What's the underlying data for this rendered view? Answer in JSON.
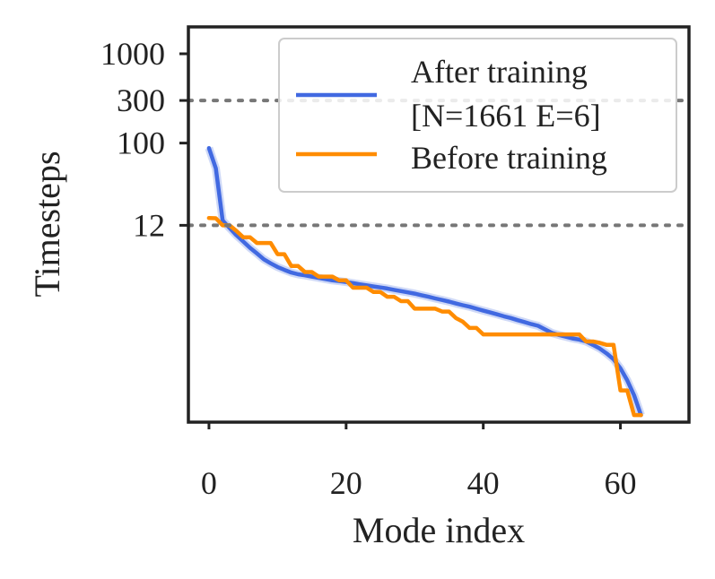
{
  "chart_data": {
    "type": "line",
    "title": "",
    "xlabel": "Mode index",
    "ylabel": "Timesteps",
    "xlim": [
      -3,
      70
    ],
    "ylog": true,
    "ylim": [
      0.075,
      2000
    ],
    "xticks": [
      0,
      20,
      40,
      60
    ],
    "xtick_labels": [
      "0",
      "20",
      "40",
      "60"
    ],
    "yticks": [
      12,
      100,
      300,
      1000
    ],
    "ytick_labels": [
      "12",
      "100",
      "300",
      "1000"
    ],
    "hlines": [
      12,
      300
    ],
    "grid": false,
    "legend_position": "top-right",
    "series": [
      {
        "name": "After training",
        "legend_lines": [
          "After training",
          "[N=1661 E=6]"
        ],
        "color": "#4169E1",
        "x": [
          0,
          1,
          2,
          3,
          4,
          5,
          6,
          7,
          8,
          9,
          10,
          11,
          12,
          13,
          14,
          15,
          16,
          17,
          18,
          19,
          20,
          21,
          22,
          23,
          24,
          25,
          26,
          27,
          28,
          29,
          30,
          31,
          32,
          33,
          34,
          35,
          36,
          37,
          38,
          39,
          40,
          41,
          42,
          43,
          44,
          45,
          46,
          47,
          48,
          49,
          50,
          51,
          52,
          53,
          54,
          55,
          56,
          57,
          58,
          59,
          60,
          61,
          62,
          63
        ],
        "values": [
          88,
          52,
          13.6,
          11.2,
          9.3,
          7.9,
          6.7,
          5.8,
          5.0,
          4.5,
          4.1,
          3.8,
          3.55,
          3.4,
          3.3,
          3.2,
          3.1,
          3.0,
          2.9,
          2.85,
          2.78,
          2.7,
          2.62,
          2.55,
          2.48,
          2.42,
          2.35,
          2.27,
          2.2,
          2.13,
          2.06,
          1.98,
          1.9,
          1.82,
          1.75,
          1.68,
          1.6,
          1.53,
          1.47,
          1.4,
          1.33,
          1.27,
          1.21,
          1.15,
          1.1,
          1.04,
          0.99,
          0.94,
          0.9,
          0.82,
          0.75,
          0.71,
          0.68,
          0.65,
          0.63,
          0.6,
          0.55,
          0.5,
          0.44,
          0.38,
          0.3,
          0.22,
          0.15,
          0.09
        ]
      },
      {
        "name": "Before training",
        "legend_lines": [
          "Before training"
        ],
        "color": "#FF8C00",
        "x": [
          0,
          1,
          2,
          3,
          4,
          5,
          6,
          7,
          8,
          9,
          10,
          11,
          12,
          13,
          14,
          15,
          16,
          17,
          18,
          19,
          20,
          21,
          22,
          23,
          24,
          25,
          26,
          27,
          28,
          29,
          30,
          31,
          32,
          33,
          34,
          35,
          36,
          37,
          38,
          39,
          40,
          41,
          42,
          43,
          44,
          45,
          46,
          47,
          48,
          49,
          50,
          51,
          52,
          53,
          54,
          55,
          56,
          57,
          58,
          59,
          60,
          61,
          62,
          63
        ],
        "values": [
          14.5,
          14.4,
          12,
          12,
          10.4,
          8.8,
          8.8,
          7.6,
          7.6,
          7.6,
          5.7,
          5.7,
          4.2,
          4.2,
          3.6,
          3.6,
          3.2,
          3.2,
          3.2,
          2.9,
          2.9,
          2.4,
          2.4,
          2.4,
          2.15,
          2.15,
          1.9,
          1.9,
          1.7,
          1.7,
          1.4,
          1.4,
          1.4,
          1.4,
          1.3,
          1.3,
          1.1,
          1.0,
          0.85,
          0.85,
          0.72,
          0.72,
          0.72,
          0.72,
          0.72,
          0.72,
          0.72,
          0.72,
          0.72,
          0.72,
          0.72,
          0.72,
          0.72,
          0.72,
          0.72,
          0.6,
          0.6,
          0.58,
          0.55,
          0.55,
          0.17,
          0.17,
          0.09,
          0.09
        ]
      }
    ]
  }
}
